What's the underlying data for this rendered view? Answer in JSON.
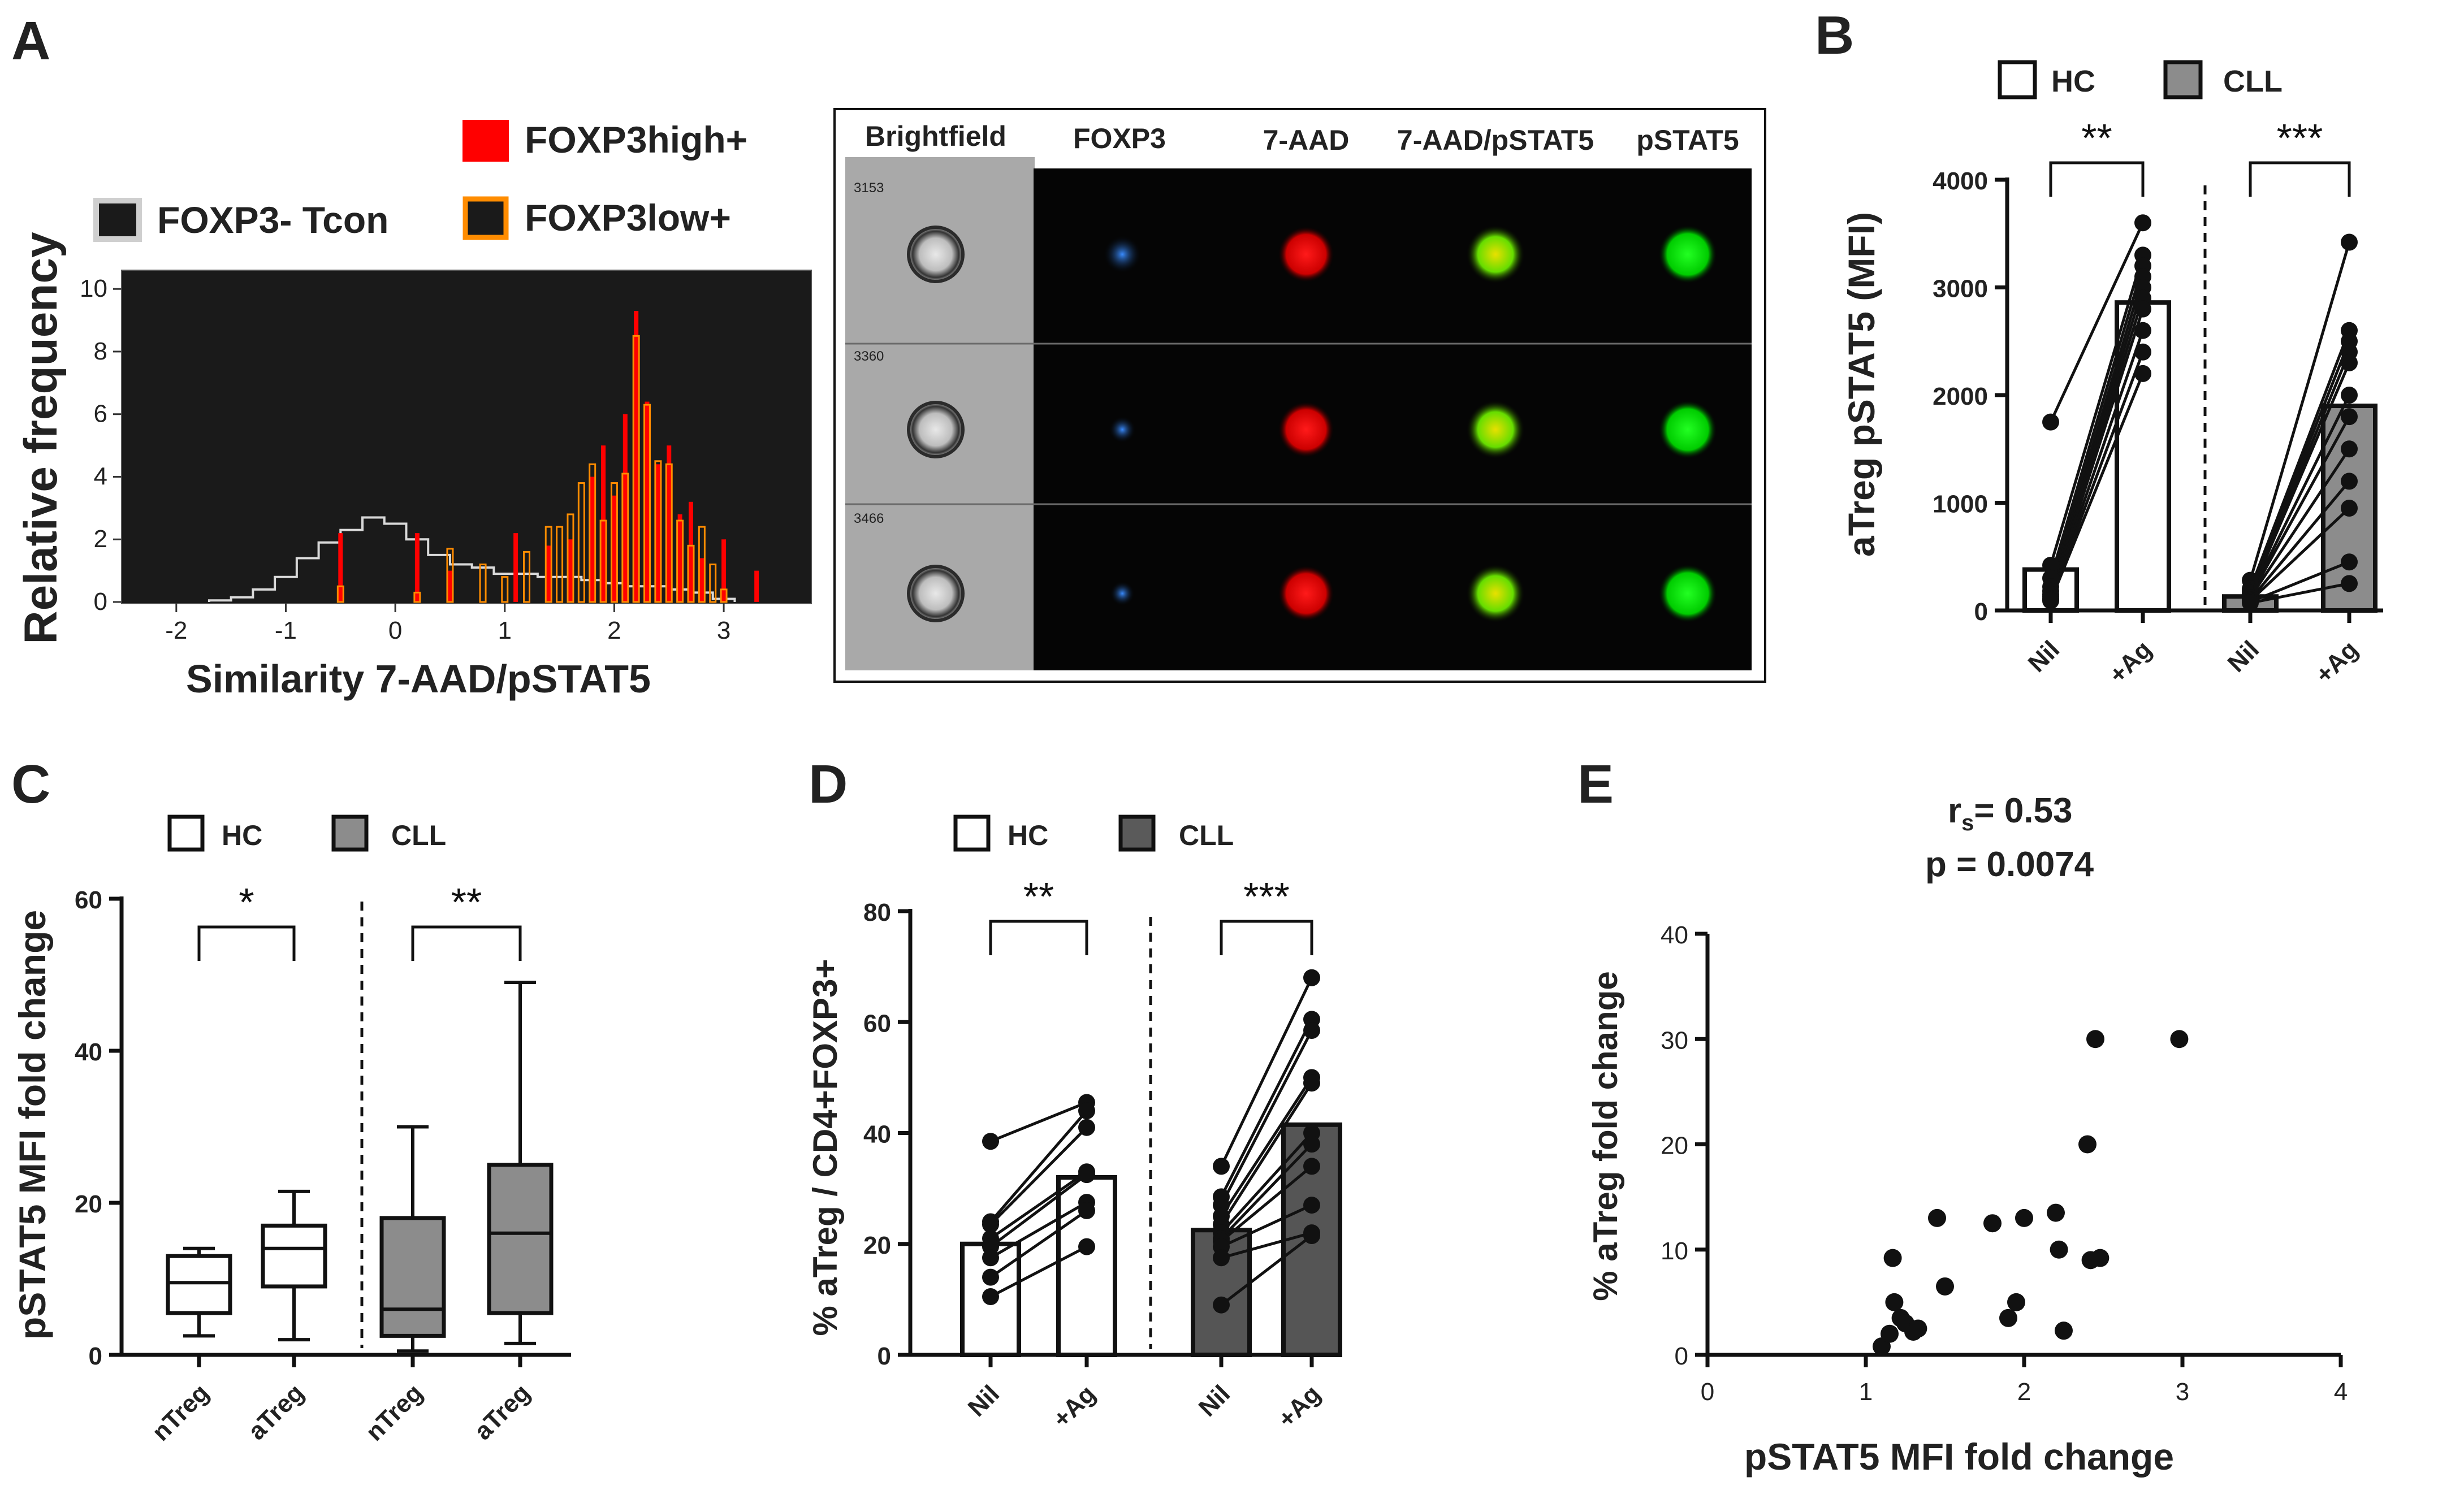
{
  "panels": {
    "a": "A",
    "b": "B",
    "c": "C",
    "d": "D",
    "e": "E"
  },
  "panelA": {
    "legend": [
      "FOXP3high+",
      "FOXP3- Tcon",
      "FOXP3low+"
    ],
    "ylabel": "Relative frequency",
    "xlabel": "Similarity  7-AAD/pSTAT5",
    "xticks": [
      "-2",
      "-1",
      "0",
      "1",
      "2",
      "3"
    ],
    "yticks": [
      "0",
      "2",
      "4",
      "6",
      "8",
      "10"
    ],
    "colors": {
      "high": "#ff0000",
      "low": "#ff8c00",
      "tcon": "#d9d9d9",
      "bg": "#1a1a1a"
    },
    "image_headers": [
      "Brightfield",
      "FOXP3",
      "7-AAD",
      "7-AAD/pSTAT5",
      "pSTAT5"
    ],
    "cell_ids": [
      "3153",
      "3360",
      "3466"
    ]
  },
  "legends": {
    "hc": "HC",
    "cll": "CLL"
  },
  "chart_data": [
    {
      "id": "A-histogram",
      "type": "area",
      "xlim": [
        -2.5,
        3.8
      ],
      "ylim": [
        0,
        10
      ],
      "xlabel": "Similarity  7-AAD/pSTAT5",
      "ylabel": "Relative frequency",
      "series": [
        {
          "name": "FOXP3- Tcon",
          "x": [
            -1.6,
            -1.4,
            -1.2,
            -1.0,
            -0.8,
            -0.6,
            -0.4,
            -0.2,
            0.0,
            0.2,
            0.4,
            0.6,
            0.8,
            1.0,
            1.2,
            1.4,
            1.6,
            1.8,
            2.0,
            2.2,
            2.4,
            2.6,
            2.8,
            3.0
          ],
          "y": [
            0.05,
            0.15,
            0.4,
            0.8,
            1.4,
            1.9,
            2.3,
            2.7,
            2.5,
            2.0,
            1.5,
            1.2,
            1.1,
            0.9,
            0.9,
            0.8,
            0.8,
            0.7,
            0.6,
            0.5,
            0.5,
            0.4,
            0.3,
            0.1
          ]
        },
        {
          "name": "FOXP3low+",
          "x": [
            -0.5,
            0.2,
            0.5,
            0.8,
            1.0,
            1.2,
            1.4,
            1.5,
            1.6,
            1.7,
            1.8,
            1.9,
            2.0,
            2.1,
            2.2,
            2.3,
            2.4,
            2.5,
            2.6,
            2.7,
            2.8,
            2.9,
            3.0
          ],
          "y": [
            0.5,
            0.3,
            1.7,
            1.2,
            0.8,
            1.6,
            2.4,
            2.4,
            2.8,
            3.8,
            4.4,
            2.6,
            3.8,
            4.1,
            8.5,
            6.3,
            4.5,
            4.4,
            2.6,
            1.8,
            2.4,
            1.2,
            0.4
          ]
        },
        {
          "name": "FOXP3high+",
          "x": [
            -0.5,
            0.2,
            0.5,
            1.1,
            1.4,
            1.6,
            1.8,
            1.9,
            2.0,
            2.1,
            2.2,
            2.3,
            2.4,
            2.5,
            2.6,
            2.7,
            2.8,
            3.0,
            3.3
          ],
          "y": [
            2.2,
            2.2,
            1.0,
            2.2,
            1.8,
            2.0,
            4.0,
            5.0,
            3.4,
            6.0,
            9.3,
            6.4,
            4.4,
            5.0,
            2.8,
            3.2,
            1.4,
            2.0,
            1.0
          ]
        }
      ]
    },
    {
      "id": "B",
      "type": "bar",
      "ylabel": "aTreg pSTAT5 (MFI)",
      "ylim": [
        0,
        4000
      ],
      "yticks": [
        "0",
        "1000",
        "2000",
        "3000",
        "4000"
      ],
      "categories": [
        "Nil",
        "+Ag",
        "Nil",
        "+Ag"
      ],
      "groups": [
        "HC",
        "CLL"
      ],
      "series": [
        {
          "name": "HC",
          "nil": [
            1750,
            420,
            300,
            220,
            180,
            150,
            130,
            110,
            100,
            90
          ],
          "ag": [
            3600,
            3300,
            3200,
            3100,
            3000,
            2900,
            2800,
            2600,
            2400,
            2200
          ],
          "bar_nil": 380,
          "bar_ag": 2860
        },
        {
          "name": "CLL",
          "nil": [
            280,
            200,
            180,
            160,
            150,
            140,
            130,
            120,
            100,
            90,
            80,
            70
          ],
          "ag": [
            3420,
            2600,
            2500,
            2400,
            2300,
            2000,
            1800,
            1500,
            1200,
            950,
            450,
            250
          ],
          "bar_nil": 130,
          "bar_ag": 1900
        }
      ],
      "significance": [
        "**",
        "***"
      ]
    },
    {
      "id": "C",
      "type": "box",
      "ylabel": "pSTAT5 MFI fold change",
      "ylim": [
        0,
        60
      ],
      "yticks": [
        "0",
        "20",
        "40",
        "60"
      ],
      "categories": [
        "nTreg",
        "aTreg",
        "nTreg",
        "aTreg"
      ],
      "boxes": [
        {
          "group": "HC",
          "label": "nTreg",
          "min": 2.5,
          "q1": 5.5,
          "median": 9.5,
          "q3": 13,
          "max": 14
        },
        {
          "group": "HC",
          "label": "aTreg",
          "min": 2,
          "q1": 9,
          "median": 14,
          "q3": 17,
          "max": 21.5
        },
        {
          "group": "CLL",
          "label": "nTreg",
          "min": 0.5,
          "q1": 2.5,
          "median": 6,
          "q3": 18,
          "max": 30
        },
        {
          "group": "CLL",
          "label": "aTreg",
          "min": 1.5,
          "q1": 5.5,
          "median": 16,
          "q3": 25,
          "max": 49
        }
      ],
      "significance": [
        "*",
        "**"
      ]
    },
    {
      "id": "D",
      "type": "bar",
      "ylabel": "% aTreg / CD4+FOXP3+",
      "ylim": [
        0,
        80
      ],
      "yticks": [
        "0",
        "20",
        "40",
        "60",
        "80"
      ],
      "categories": [
        "Nil",
        "+Ag",
        "Nil",
        "+Ag"
      ],
      "series": [
        {
          "name": "HC",
          "nil": [
            38.5,
            24,
            23.5,
            21,
            19.5,
            17.5,
            14,
            10.5
          ],
          "ag": [
            45.5,
            44,
            41,
            33,
            32.5,
            27.5,
            26,
            19.5
          ],
          "bar_nil": 20,
          "bar_ag": 32
        },
        {
          "name": "CLL",
          "nil": [
            34,
            28.5,
            27,
            25,
            23.5,
            22,
            21,
            20.5,
            19.5,
            17.5,
            9
          ],
          "ag": [
            68,
            60.5,
            58.5,
            50,
            49,
            40,
            38,
            34,
            27,
            22,
            21.5
          ],
          "bar_nil": 22.5,
          "bar_ag": 41.5
        }
      ],
      "significance": [
        "**",
        "***"
      ]
    },
    {
      "id": "E",
      "type": "scatter",
      "title_r": "r",
      "title_r_sub": "s",
      "title_r_value": "= 0.53",
      "title_p": "p = 0.0074",
      "xlabel": "pSTAT5 MFI fold change",
      "ylabel": "% aTreg fold change",
      "xlim": [
        0,
        4
      ],
      "ylim": [
        0,
        40
      ],
      "xticks": [
        "0",
        "1",
        "2",
        "3",
        "4"
      ],
      "yticks": [
        "0",
        "10",
        "20",
        "30",
        "40"
      ],
      "x": [
        1.1,
        1.15,
        1.17,
        1.18,
        1.22,
        1.25,
        1.3,
        1.33,
        1.45,
        1.5,
        1.8,
        1.9,
        1.95,
        2.0,
        2.2,
        2.22,
        2.25,
        2.4,
        2.42,
        2.45,
        2.48,
        2.98
      ],
      "y": [
        0.8,
        2.0,
        9.2,
        5.0,
        3.5,
        3.0,
        2.2,
        2.5,
        13.0,
        6.5,
        12.5,
        3.5,
        5.0,
        13.0,
        13.5,
        10.0,
        2.3,
        20.0,
        9.0,
        30.0,
        9.2,
        30.0
      ]
    }
  ]
}
